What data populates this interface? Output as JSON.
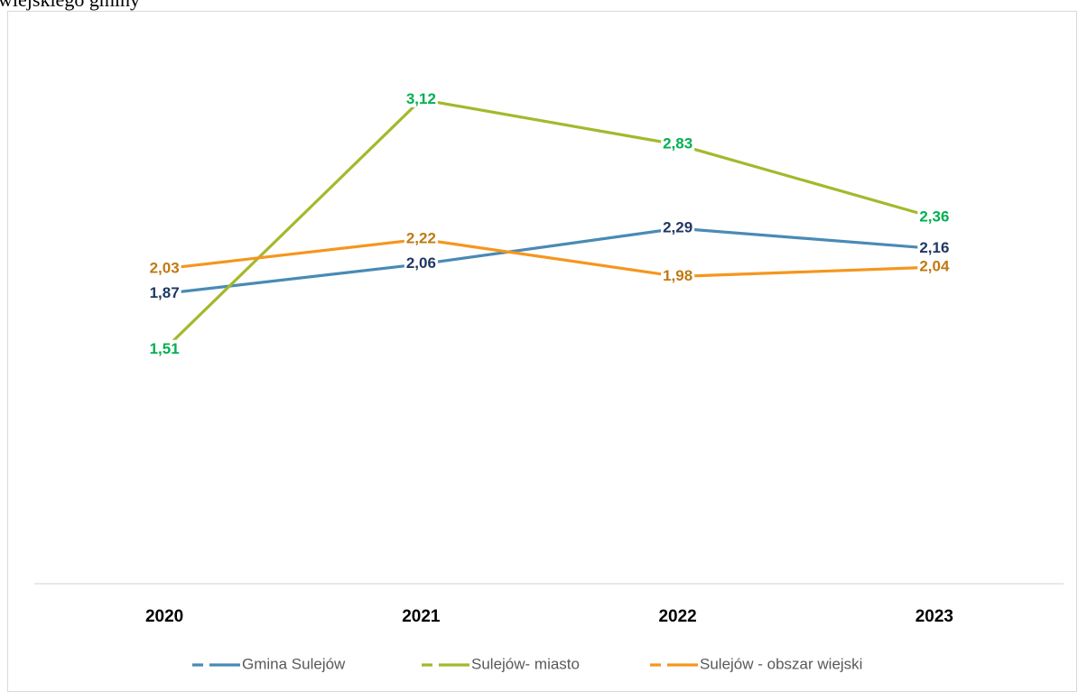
{
  "chart_data": {
    "type": "line",
    "title": "wiejskiego gminy",
    "categories": [
      "2020",
      "2021",
      "2022",
      "2023"
    ],
    "ylim": [
      0,
      3.5
    ],
    "series": [
      {
        "name": "Gmina Sulejów",
        "color": "#4a8ab5",
        "label_color": "#1f3864",
        "values": [
          1.87,
          2.06,
          2.29,
          2.16
        ],
        "value_labels": [
          "1,87",
          "2,06",
          "2,29",
          "2,16"
        ]
      },
      {
        "name": "Sulejów- miasto",
        "color": "#a5b82c",
        "label_color": "#00b050",
        "values": [
          1.51,
          3.12,
          2.83,
          2.36
        ],
        "value_labels": [
          "1,51",
          "3,12",
          "2,83",
          "2,36"
        ]
      },
      {
        "name": "Sulejów - obszar wiejski",
        "color": "#f5961e",
        "label_color": "#bf7a12",
        "values": [
          2.03,
          2.22,
          1.98,
          2.04
        ],
        "value_labels": [
          "2,03",
          "2,22",
          "1,98",
          "2,04"
        ]
      }
    ],
    "legend": "bottom"
  }
}
